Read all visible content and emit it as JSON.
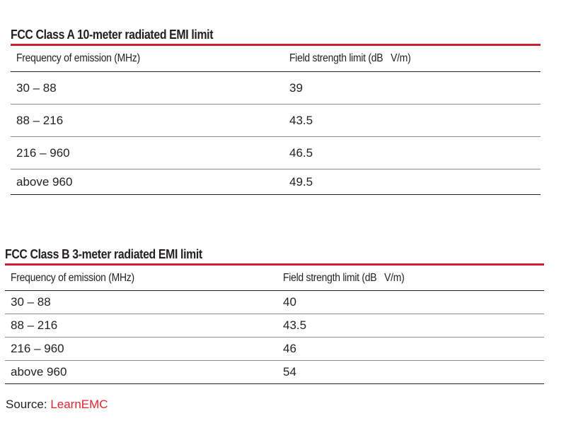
{
  "tables": [
    {
      "title": "FCC Class A 10-meter radiated EMI limit",
      "headers": [
        "Frequency of emission (MHz)",
        "Field strength limit (dB   V/m)"
      ],
      "rows": [
        [
          "30 – 88",
          "39"
        ],
        [
          "88 – 216",
          "43.5"
        ],
        [
          "216 – 960",
          "46.5"
        ],
        [
          "above 960",
          "49.5"
        ]
      ]
    },
    {
      "title": "FCC Class B 3-meter radiated EMI limit",
      "headers": [
        "Frequency of emission (MHz)",
        "Field strength limit (dB   V/m)"
      ],
      "rows": [
        [
          "30 – 88",
          "40"
        ],
        [
          "88 – 216",
          "43.5"
        ],
        [
          "216 – 960",
          "46"
        ],
        [
          "above 960",
          "54"
        ]
      ]
    }
  ],
  "source": {
    "label": "Source: ",
    "link_text": "LearnEMC"
  },
  "colors": {
    "accent_rule": "#cc1f35",
    "link": "#e0252f",
    "text": "#231f20"
  }
}
